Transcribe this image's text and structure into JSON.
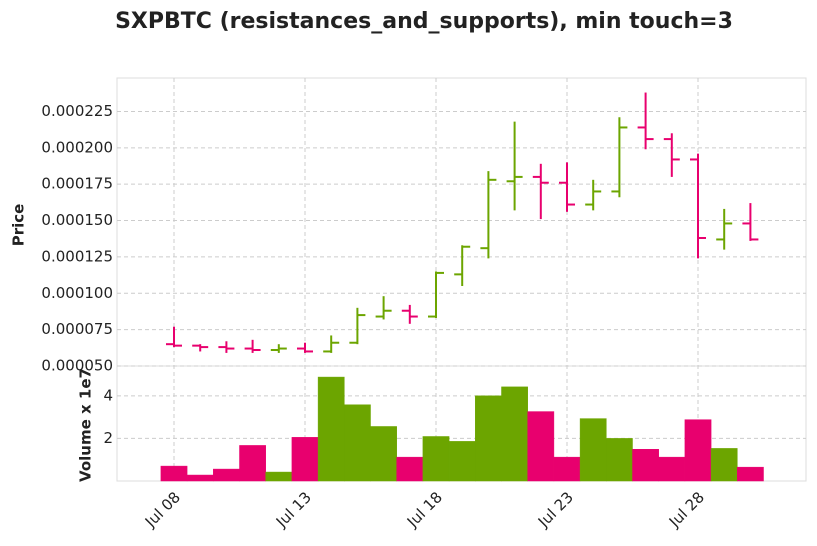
{
  "chart_data": {
    "type": "ohlc",
    "title": "SXPBTC (resistances_and_supports), min touch=3",
    "ylabel": "Price",
    "volume_label": "Volume x 1e7",
    "categories": [
      "Jul 08",
      null,
      null,
      null,
      null,
      "Jul 13",
      null,
      null,
      null,
      null,
      "Jul 18",
      null,
      null,
      null,
      null,
      "Jul 23",
      null,
      null,
      null,
      null,
      "Jul 28",
      null,
      null
    ],
    "open": [
      6.5e-05,
      6.4e-05,
      6.3e-05,
      6.2e-05,
      6.1e-05,
      6.2e-05,
      6e-05,
      6.6e-05,
      8.4e-05,
      8.8e-05,
      8.4e-05,
      0.000113,
      0.000131,
      0.000177,
      0.00018,
      0.000176,
      0.000161,
      0.00017,
      0.000214,
      0.000206,
      0.000192,
      0.000137,
      0.000148
    ],
    "high": [
      7.7e-05,
      6.5e-05,
      6.7e-05,
      6.8e-05,
      6.5e-05,
      6.6e-05,
      7.1e-05,
      9e-05,
      9.8e-05,
      9.2e-05,
      0.000115,
      0.000133,
      0.000184,
      0.000218,
      0.000189,
      0.00019,
      0.000178,
      0.000221,
      0.000238,
      0.00021,
      0.000196,
      0.000158,
      0.000162
    ],
    "low": [
      6.3e-05,
      6e-05,
      5.9e-05,
      5.9e-05,
      5.9e-05,
      5.9e-05,
      5.9e-05,
      6.5e-05,
      8.2e-05,
      7.9e-05,
      8.3e-05,
      0.000105,
      0.000124,
      0.000157,
      0.000151,
      0.000156,
      0.000157,
      0.000166,
      0.000199,
      0.00018,
      0.000124,
      0.00013,
      0.000136
    ],
    "close": [
      6.4e-05,
      6.3e-05,
      6.2e-05,
      6.1e-05,
      6.2e-05,
      6e-05,
      6.6e-05,
      8.5e-05,
      8.8e-05,
      8.4e-05,
      0.000114,
      0.000132,
      0.000178,
      0.00018,
      0.000176,
      0.000161,
      0.00017,
      0.000214,
      0.000206,
      0.000192,
      0.000138,
      0.000148,
      0.000137
    ],
    "volume": [
      0.7,
      0.28,
      0.56,
      1.67,
      0.42,
      2.05,
      4.88,
      3.58,
      2.56,
      1.12,
      2.09,
      1.86,
      4.0,
      4.42,
      3.26,
      1.12,
      2.93,
      2.0,
      1.49,
      1.12,
      2.88,
      1.53,
      0.65
    ],
    "up_color": "#6ca500",
    "down_color": "#e8006e",
    "ylim": [
      5e-05,
      0.000248
    ],
    "yticks": [
      {
        "value": 5e-05,
        "label": "0.000050"
      },
      {
        "value": 7.5e-05,
        "label": "0.000075"
      },
      {
        "value": 0.0001,
        "label": "0.000100"
      },
      {
        "value": 0.000125,
        "label": "0.000125"
      },
      {
        "value": 0.00015,
        "label": "0.000150"
      },
      {
        "value": 0.000175,
        "label": "0.000175"
      },
      {
        "value": 0.0002,
        "label": "0.000200"
      },
      {
        "value": 0.000225,
        "label": "0.000225"
      }
    ],
    "vlim": [
      0,
      5.4
    ],
    "vticks": [
      2,
      4
    ],
    "grid": true
  }
}
